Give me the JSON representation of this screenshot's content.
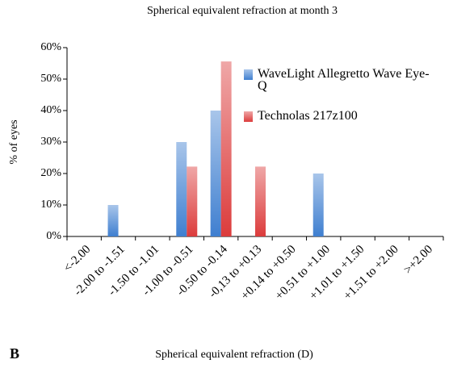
{
  "chart_data": {
    "type": "bar",
    "title": "Spherical equivalent refraction at month 3",
    "x_label": "Spherical equivalent refraction (D)",
    "y_label": "% of eyes",
    "panel_label": "B",
    "categories": [
      "<-2.00",
      "-2.00 to -1.51",
      "-1.50 to -1.01",
      "-1.00 to -0.51",
      "-0.50 to -0.14",
      "-0,13 to +0.13",
      "+0.14 to +0.50",
      "+0.51 to +1.00",
      "+1.01 to +1.50",
      "+1.51 to +2.00",
      ">+2.00"
    ],
    "series": [
      {
        "name": "WaveLight Allegretto Wave Eye-Q",
        "color": "#3f7fd0",
        "values": [
          0,
          10,
          0,
          30,
          40,
          0,
          0,
          20,
          0,
          0,
          0
        ]
      },
      {
        "name": "Technolas 217z100",
        "color": "#dc3c3c",
        "values": [
          0,
          0,
          0,
          22.2,
          55.6,
          22.2,
          0,
          0,
          0,
          0,
          0
        ]
      }
    ],
    "ylim": [
      0,
      60
    ],
    "yticks": [
      {
        "value": 0,
        "label": "0%"
      },
      {
        "value": 10,
        "label": "10%"
      },
      {
        "value": 20,
        "label": "20%"
      },
      {
        "value": 30,
        "label": "30%"
      },
      {
        "value": 40,
        "label": "40%"
      },
      {
        "value": 50,
        "label": "50%"
      },
      {
        "value": 60,
        "label": "60%"
      }
    ],
    "legend": "right"
  }
}
